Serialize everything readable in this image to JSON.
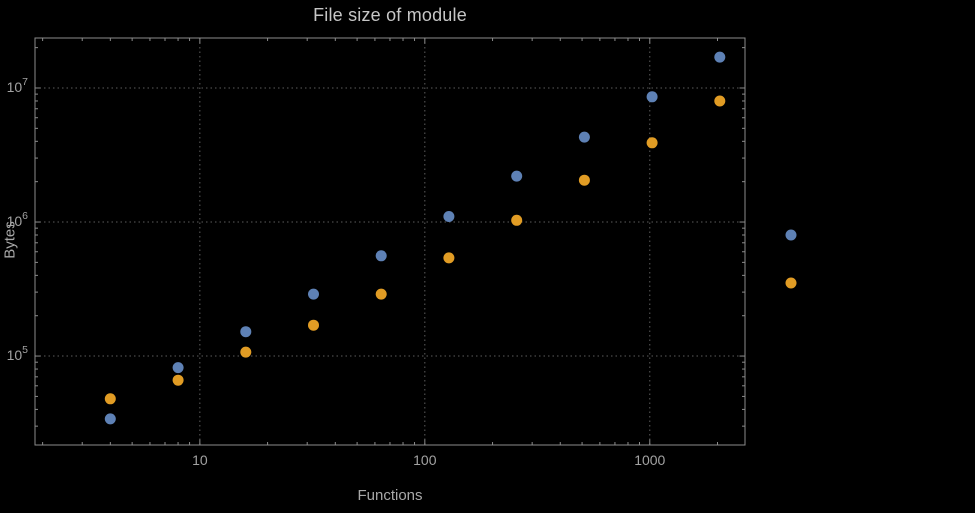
{
  "chart_data": {
    "type": "scatter",
    "title": "File size of module",
    "xlabel": "Functions",
    "ylabel": "Bytes",
    "x_scale": "log",
    "y_scale": "log",
    "xlim": [
      1.85,
      2650
    ],
    "ylim": [
      21700,
      23600000
    ],
    "x_tick_values": [
      10,
      100,
      1000
    ],
    "x_tick_labels": [
      "10",
      "100",
      "1000"
    ],
    "y_tick_exponents": [
      5,
      6,
      7
    ],
    "y_tick_base": "10",
    "grid": "dotted",
    "frame": true,
    "legend": {
      "position": "outside-right",
      "markers_only": true,
      "labels_visible": false
    },
    "series": [
      {
        "name": "series-1-blue",
        "color": "#5E81B5",
        "points": [
          [
            4,
            34000
          ],
          [
            8,
            82000
          ],
          [
            16,
            152000
          ],
          [
            32,
            290000
          ],
          [
            64,
            560000
          ],
          [
            128,
            1100000
          ],
          [
            256,
            2200000
          ],
          [
            512,
            4300000
          ],
          [
            1024,
            8600000
          ],
          [
            2048,
            17000000
          ]
        ]
      },
      {
        "name": "series-2-orange",
        "color": "#E19C24",
        "points": [
          [
            4,
            48000
          ],
          [
            8,
            66000
          ],
          [
            16,
            107000
          ],
          [
            32,
            170000
          ],
          [
            64,
            290000
          ],
          [
            128,
            540000
          ],
          [
            256,
            1030000
          ],
          [
            512,
            2050000
          ],
          [
            1024,
            3900000
          ],
          [
            2048,
            8000000
          ]
        ]
      }
    ]
  },
  "styles": {
    "background": "#000000",
    "title_color": "#c6c6c6",
    "label_color": "#a8a8a8",
    "tick_label_color": "#a2a2a2",
    "frame_color": "#8c8c8c",
    "tick_color": "#8c8c8c",
    "grid_color": "#5d5d5d"
  }
}
